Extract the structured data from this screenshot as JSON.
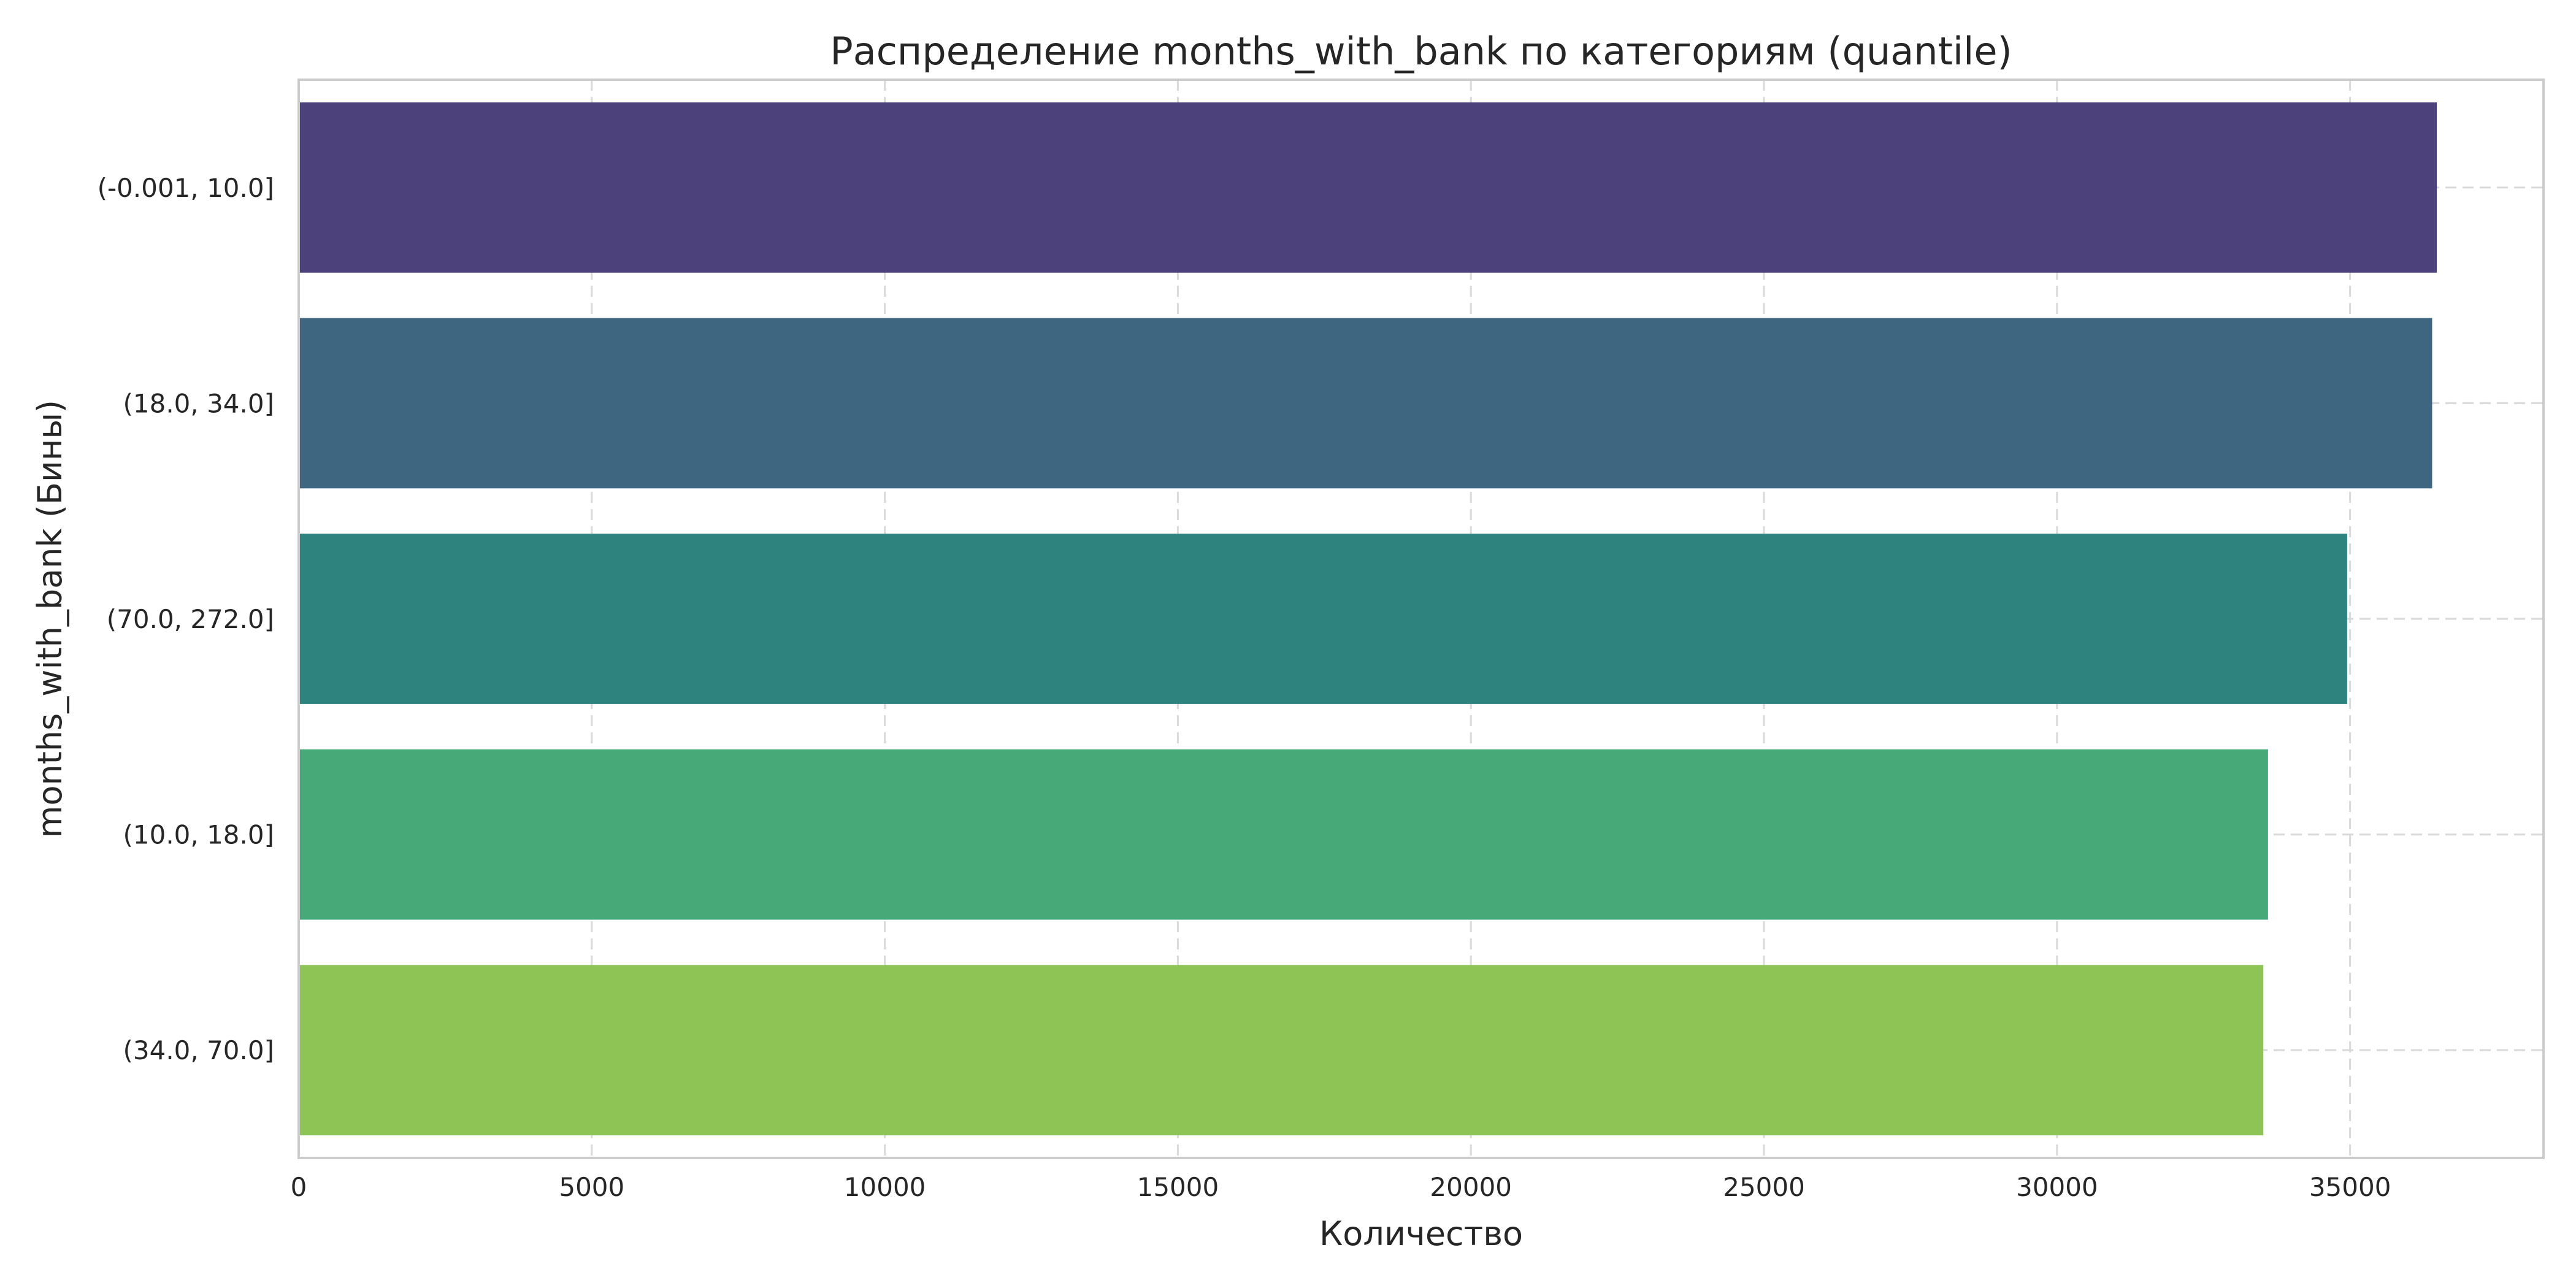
{
  "chart_data": {
    "type": "bar",
    "orientation": "horizontal",
    "title": "Распределение months_with_bank по категориям (quantile)",
    "xlabel": "Количество",
    "ylabel": "months_with_bank (Бины)",
    "categories": [
      "(-0.001, 10.0]",
      "(18.0, 34.0]",
      "(70.0, 272.0]",
      "(10.0, 18.0]",
      "(34.0, 70.0]"
    ],
    "values": [
      36480,
      36400,
      34950,
      33600,
      33520
    ],
    "colors": [
      "#4c417a",
      "#3e6681",
      "#2e837f",
      "#47a878",
      "#8ec456"
    ],
    "xlim": [
      0,
      38300
    ],
    "xticks": [
      0,
      5000,
      10000,
      15000,
      20000,
      25000,
      30000,
      35000
    ],
    "xtick_labels": [
      "0",
      "5000",
      "10000",
      "15000",
      "20000",
      "25000",
      "30000",
      "35000"
    ],
    "grid": true
  }
}
